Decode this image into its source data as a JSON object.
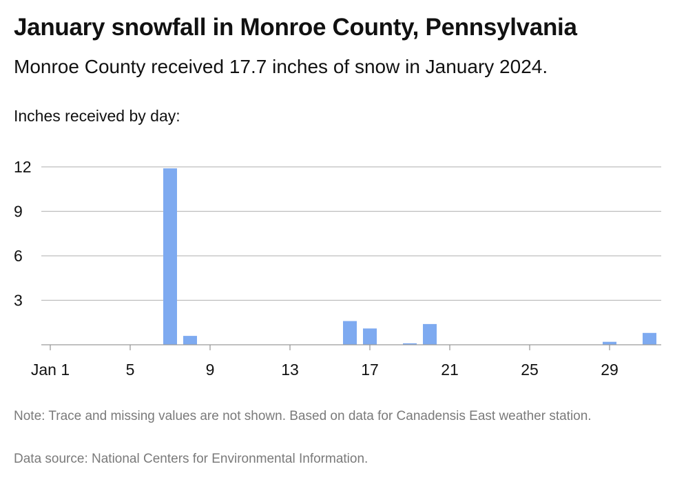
{
  "header": {
    "title": "January snowfall in Monroe County, Pennsylvania",
    "subtitle": "Monroe County received 17.7 inches of snow in January 2024."
  },
  "footer": {
    "note": "Note: Trace and missing values are not shown. Based on data for Canadensis East weather station.",
    "source": "Data source: National Centers for Environmental Information."
  },
  "colors": {
    "bar": "#7eaaf0",
    "grid": "#bdbdbd",
    "axis": "#9a9a9a"
  },
  "chart_data": {
    "type": "bar",
    "title": "January snowfall in Monroe County, Pennsylvania",
    "ylabel": "Inches received by day:",
    "xlabel": "",
    "ylim": [
      0,
      12
    ],
    "yticks": [
      3,
      6,
      9,
      12
    ],
    "grid": true,
    "xticks": [
      {
        "day": 1,
        "label": "Jan 1"
      },
      {
        "day": 5,
        "label": "5"
      },
      {
        "day": 9,
        "label": "9"
      },
      {
        "day": 13,
        "label": "13"
      },
      {
        "day": 17,
        "label": "17"
      },
      {
        "day": 21,
        "label": "21"
      },
      {
        "day": 25,
        "label": "25"
      },
      {
        "day": 29,
        "label": "29"
      }
    ],
    "categories": [
      1,
      2,
      3,
      4,
      5,
      6,
      7,
      8,
      9,
      10,
      11,
      12,
      13,
      14,
      15,
      16,
      17,
      18,
      19,
      20,
      21,
      22,
      23,
      24,
      25,
      26,
      27,
      28,
      29,
      30,
      31
    ],
    "values": [
      0,
      0,
      0,
      0,
      0,
      0,
      11.9,
      0.6,
      0,
      0,
      0,
      0,
      0,
      0,
      0,
      1.6,
      1.1,
      0,
      0.1,
      1.4,
      0,
      0,
      0,
      0,
      0,
      0,
      0,
      0,
      0.2,
      0,
      0.8
    ]
  }
}
